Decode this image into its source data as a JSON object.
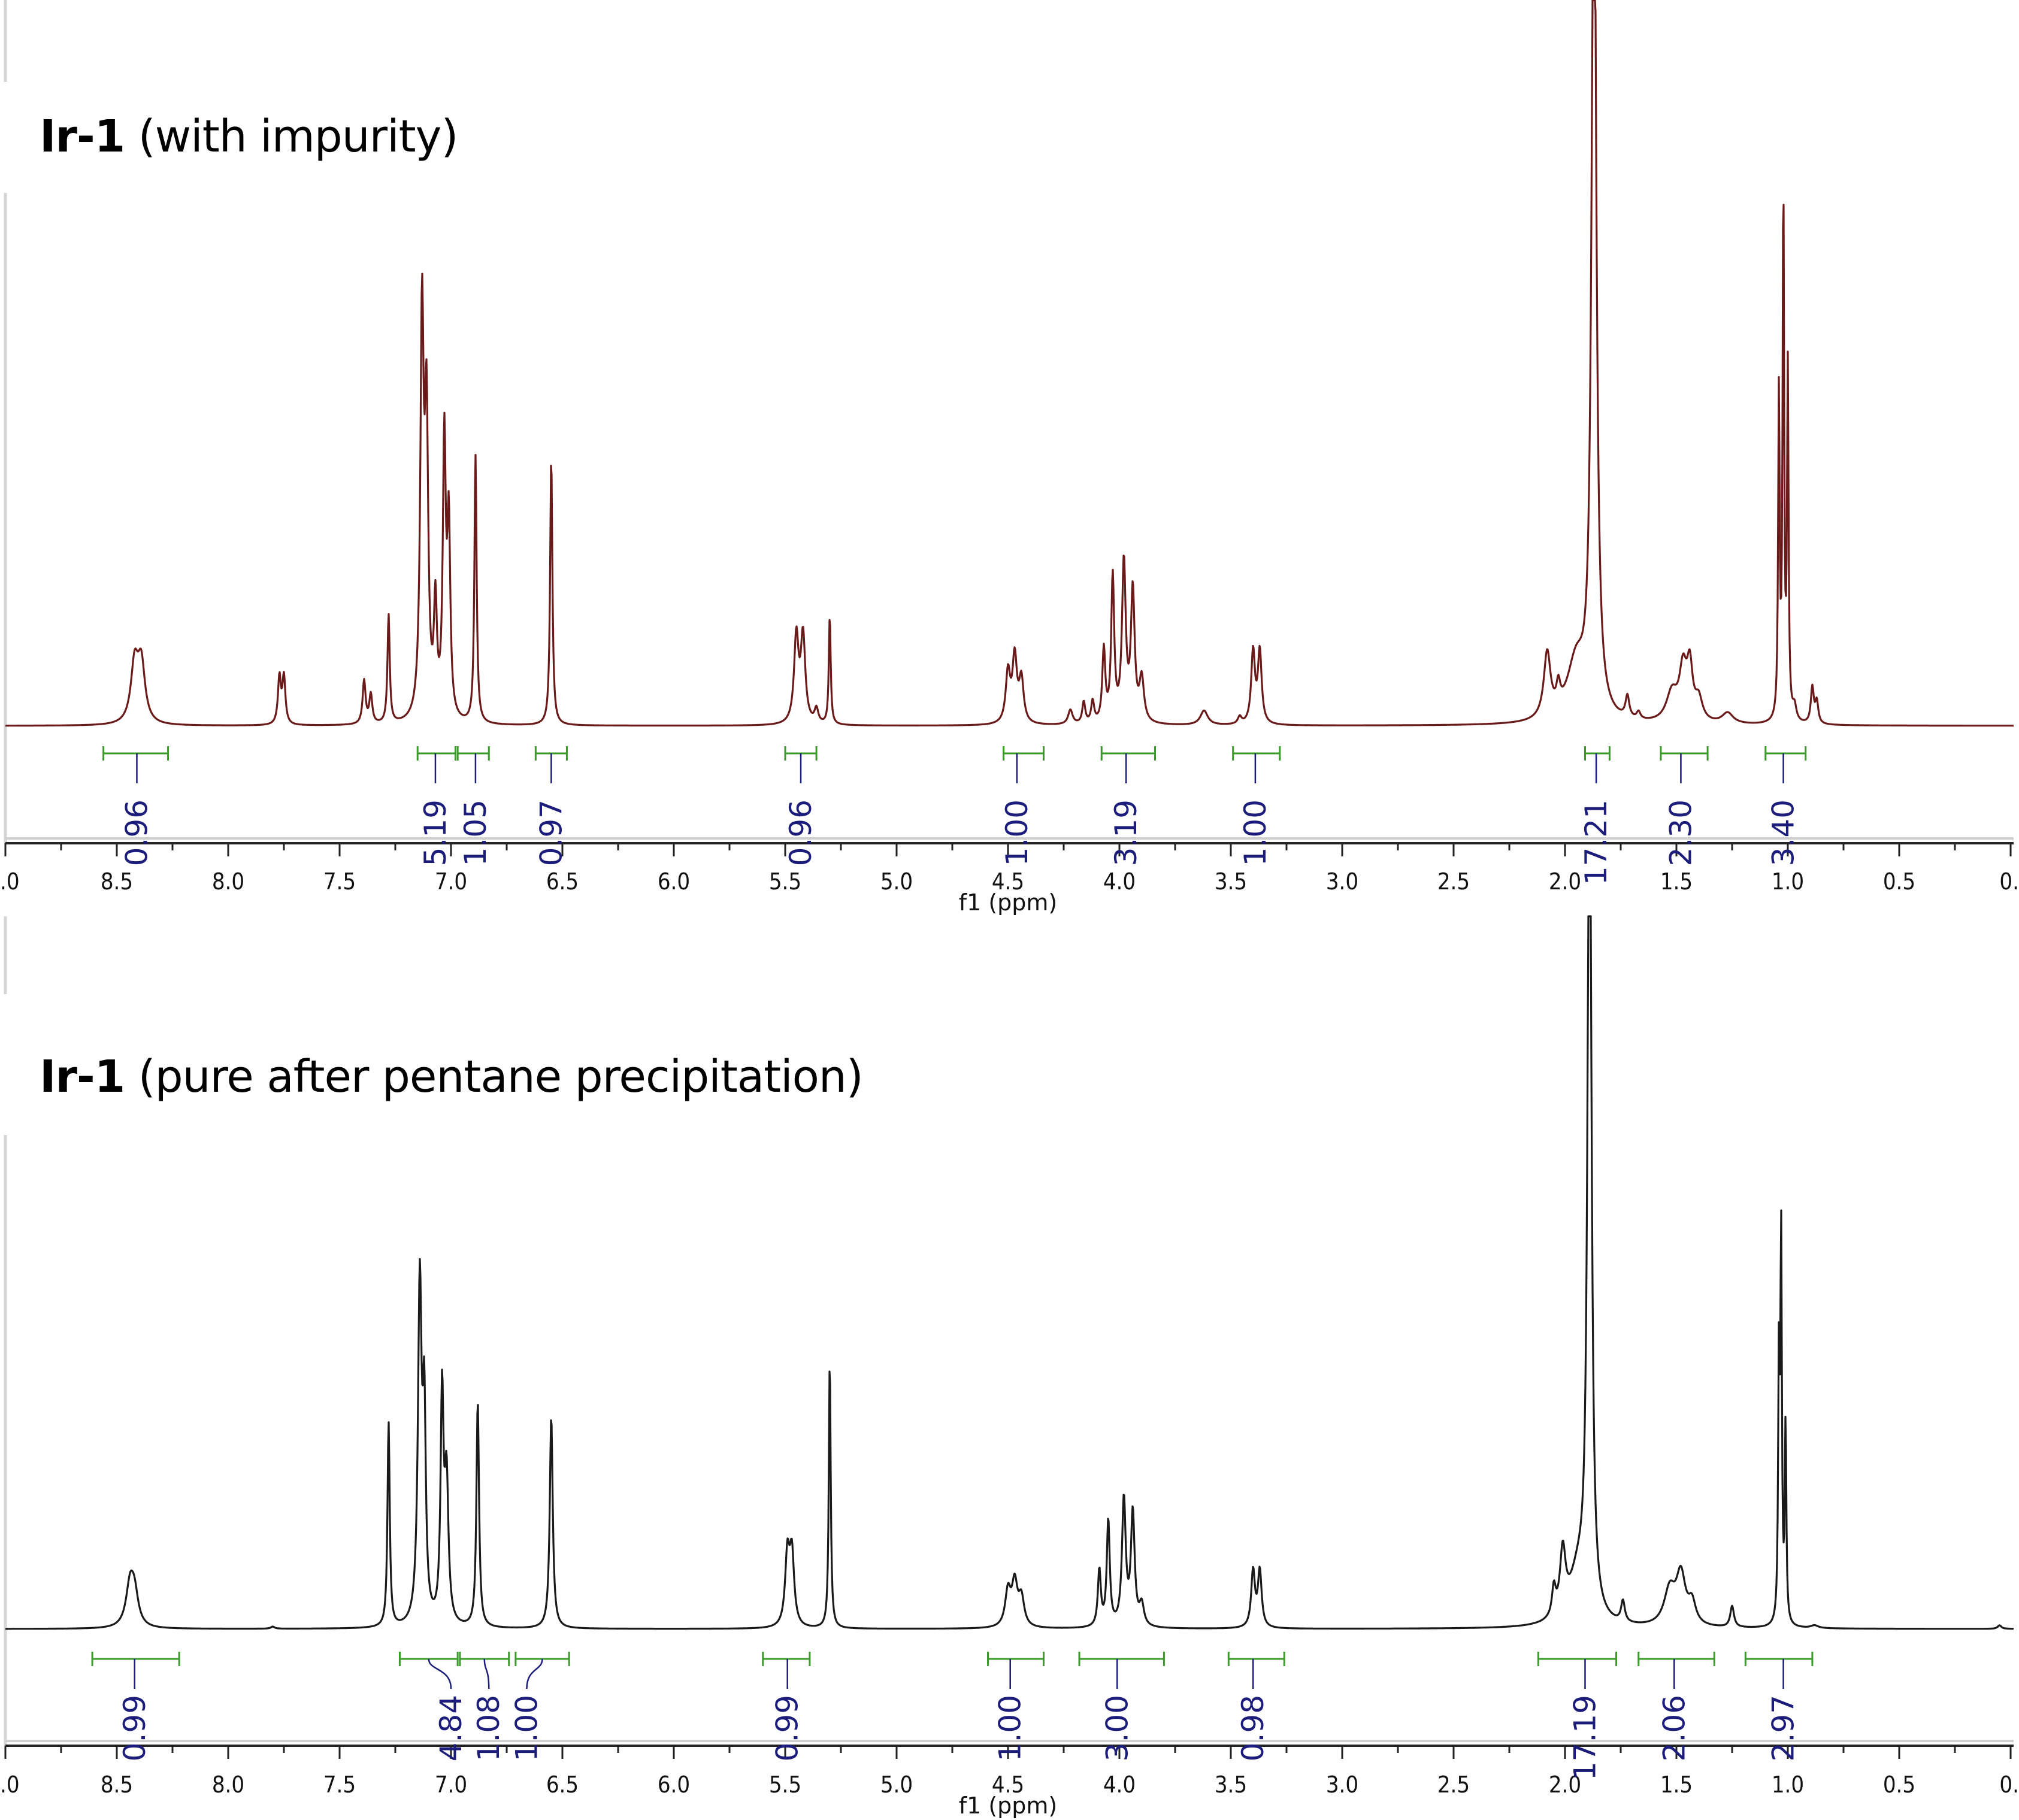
{
  "figure": {
    "panels": [
      {
        "id": "top",
        "title_bold": "Ir-1",
        "title_rest": " (with impurity)",
        "line_color": "#6b1a1a",
        "axis_label": "f1 (ppm)"
      },
      {
        "id": "bottom",
        "title_bold": "Ir-1",
        "title_rest": " (pure after pentane precipitation)",
        "line_color": "#1a1a1a",
        "axis_label": "f1 (ppm)"
      }
    ],
    "integral_bar_color": "#3a9a2a",
    "integral_label_color": "#1c1c7a",
    "axis_tick_labels": [
      ".0",
      "8.5",
      "8.0",
      "7.5",
      "7.0",
      "6.5",
      "6.0",
      "5.5",
      "5.0",
      "4.5",
      "4.0",
      "3.5",
      "3.0",
      "2.5",
      "2.0",
      "1.5",
      "1.0",
      "0.5",
      "0."
    ]
  },
  "chart_data": [
    {
      "type": "line",
      "title": "Ir-1 (with impurity)",
      "xlabel": "f1 (ppm)",
      "ylabel": "",
      "xlim": [
        9.0,
        0.0
      ],
      "x_reversed": true,
      "grid": false,
      "color": "#6b1a1a",
      "peaks": [
        {
          "ppm": 8.42,
          "h": 0.08,
          "w": 0.02
        },
        {
          "ppm": 8.39,
          "h": 0.08,
          "w": 0.02
        },
        {
          "ppm": 7.77,
          "h": 0.065,
          "w": 0.008
        },
        {
          "ppm": 7.75,
          "h": 0.065,
          "w": 0.008
        },
        {
          "ppm": 7.39,
          "h": 0.06,
          "w": 0.008
        },
        {
          "ppm": 7.36,
          "h": 0.04,
          "w": 0.008
        },
        {
          "ppm": 7.28,
          "h": 0.15,
          "w": 0.006
        },
        {
          "ppm": 7.13,
          "h": 0.55,
          "w": 0.009
        },
        {
          "ppm": 7.11,
          "h": 0.4,
          "w": 0.009
        },
        {
          "ppm": 7.07,
          "h": 0.15,
          "w": 0.008
        },
        {
          "ppm": 7.03,
          "h": 0.38,
          "w": 0.008
        },
        {
          "ppm": 7.01,
          "h": 0.26,
          "w": 0.008
        },
        {
          "ppm": 6.89,
          "h": 0.37,
          "w": 0.006
        },
        {
          "ppm": 6.55,
          "h": 0.37,
          "w": 0.006
        },
        {
          "ppm": 5.45,
          "h": 0.12,
          "w": 0.012
        },
        {
          "ppm": 5.42,
          "h": 0.12,
          "w": 0.012
        },
        {
          "ppm": 5.36,
          "h": 0.02,
          "w": 0.01
        },
        {
          "ppm": 5.3,
          "h": 0.15,
          "w": 0.005
        },
        {
          "ppm": 4.5,
          "h": 0.07,
          "w": 0.012
        },
        {
          "ppm": 4.47,
          "h": 0.09,
          "w": 0.012
        },
        {
          "ppm": 4.44,
          "h": 0.06,
          "w": 0.012
        },
        {
          "ppm": 4.22,
          "h": 0.02,
          "w": 0.012
        },
        {
          "ppm": 4.16,
          "h": 0.03,
          "w": 0.008
        },
        {
          "ppm": 4.12,
          "h": 0.03,
          "w": 0.008
        },
        {
          "ppm": 4.07,
          "h": 0.1,
          "w": 0.008
        },
        {
          "ppm": 4.03,
          "h": 0.2,
          "w": 0.008
        },
        {
          "ppm": 3.98,
          "h": 0.22,
          "w": 0.01
        },
        {
          "ppm": 3.94,
          "h": 0.18,
          "w": 0.01
        },
        {
          "ppm": 3.9,
          "h": 0.06,
          "w": 0.012
        },
        {
          "ppm": 3.62,
          "h": 0.02,
          "w": 0.02
        },
        {
          "ppm": 3.46,
          "h": 0.01,
          "w": 0.01
        },
        {
          "ppm": 3.4,
          "h": 0.1,
          "w": 0.01
        },
        {
          "ppm": 3.37,
          "h": 0.1,
          "w": 0.01
        },
        {
          "ppm": 2.08,
          "h": 0.09,
          "w": 0.018
        },
        {
          "ppm": 2.03,
          "h": 0.03,
          "w": 0.01
        },
        {
          "ppm": 1.95,
          "h": 0.08,
          "w": 0.05
        },
        {
          "ppm": 1.87,
          "h": 1.3,
          "w": 0.012
        },
        {
          "ppm": 1.72,
          "h": 0.03,
          "w": 0.01
        },
        {
          "ppm": 1.67,
          "h": 0.01,
          "w": 0.01
        },
        {
          "ppm": 1.52,
          "h": 0.04,
          "w": 0.03
        },
        {
          "ppm": 1.47,
          "h": 0.07,
          "w": 0.02
        },
        {
          "ppm": 1.44,
          "h": 0.07,
          "w": 0.015
        },
        {
          "ppm": 1.4,
          "h": 0.03,
          "w": 0.02
        },
        {
          "ppm": 1.27,
          "h": 0.015,
          "w": 0.03
        },
        {
          "ppm": 1.04,
          "h": 0.45,
          "w": 0.004
        },
        {
          "ppm": 1.02,
          "h": 0.74,
          "w": 0.004
        },
        {
          "ppm": 1.0,
          "h": 0.48,
          "w": 0.004
        },
        {
          "ppm": 0.97,
          "h": 0.02,
          "w": 0.01
        },
        {
          "ppm": 0.89,
          "h": 0.05,
          "w": 0.008
        },
        {
          "ppm": 0.87,
          "h": 0.03,
          "w": 0.008
        }
      ],
      "integrals": [
        {
          "from": 8.56,
          "to": 8.27,
          "center": 8.41,
          "value": "0.96"
        },
        {
          "from": 7.15,
          "to": 6.98,
          "center": 7.07,
          "value": "5.19"
        },
        {
          "from": 6.97,
          "to": 6.83,
          "center": 6.89,
          "value": "1.05"
        },
        {
          "from": 6.62,
          "to": 6.48,
          "center": 6.55,
          "value": "0.97"
        },
        {
          "from": 5.5,
          "to": 5.36,
          "center": 5.43,
          "value": "0.96"
        },
        {
          "from": 4.52,
          "to": 4.34,
          "center": 4.46,
          "value": "1.00"
        },
        {
          "from": 4.08,
          "to": 3.84,
          "center": 3.97,
          "value": "3.19"
        },
        {
          "from": 3.49,
          "to": 3.28,
          "center": 3.39,
          "value": "1.00"
        },
        {
          "from": 1.91,
          "to": 1.8,
          "center": 1.86,
          "value": "17.21"
        },
        {
          "from": 1.57,
          "to": 1.36,
          "center": 1.48,
          "value": "2.30"
        },
        {
          "from": 1.1,
          "to": 0.92,
          "center": 1.02,
          "value": "3.40"
        }
      ]
    },
    {
      "type": "line",
      "title": "Ir-1 (pure after pentane precipitation)",
      "xlabel": "f1 (ppm)",
      "ylabel": "",
      "xlim": [
        9.0,
        0.0
      ],
      "x_reversed": true,
      "grid": false,
      "color": "#1a1a1a",
      "peaks": [
        {
          "ppm": 8.44,
          "h": 0.06,
          "w": 0.022
        },
        {
          "ppm": 8.42,
          "h": 0.04,
          "w": 0.02
        },
        {
          "ppm": 7.8,
          "h": 0.003,
          "w": 0.01
        },
        {
          "ppm": 7.28,
          "h": 0.29,
          "w": 0.006
        },
        {
          "ppm": 7.14,
          "h": 0.48,
          "w": 0.01
        },
        {
          "ppm": 7.12,
          "h": 0.28,
          "w": 0.008
        },
        {
          "ppm": 7.04,
          "h": 0.32,
          "w": 0.008
        },
        {
          "ppm": 7.02,
          "h": 0.2,
          "w": 0.01
        },
        {
          "ppm": 6.88,
          "h": 0.32,
          "w": 0.007
        },
        {
          "ppm": 6.55,
          "h": 0.3,
          "w": 0.008
        },
        {
          "ppm": 5.49,
          "h": 0.1,
          "w": 0.012
        },
        {
          "ppm": 5.47,
          "h": 0.1,
          "w": 0.012
        },
        {
          "ppm": 5.3,
          "h": 0.38,
          "w": 0.005
        },
        {
          "ppm": 4.5,
          "h": 0.05,
          "w": 0.015
        },
        {
          "ppm": 4.47,
          "h": 0.06,
          "w": 0.015
        },
        {
          "ppm": 4.44,
          "h": 0.04,
          "w": 0.015
        },
        {
          "ppm": 4.09,
          "h": 0.08,
          "w": 0.008
        },
        {
          "ppm": 4.05,
          "h": 0.15,
          "w": 0.008
        },
        {
          "ppm": 3.98,
          "h": 0.18,
          "w": 0.01
        },
        {
          "ppm": 3.94,
          "h": 0.16,
          "w": 0.01
        },
        {
          "ppm": 3.9,
          "h": 0.03,
          "w": 0.012
        },
        {
          "ppm": 3.4,
          "h": 0.08,
          "w": 0.01
        },
        {
          "ppm": 3.37,
          "h": 0.08,
          "w": 0.01
        },
        {
          "ppm": 2.05,
          "h": 0.04,
          "w": 0.01
        },
        {
          "ppm": 2.01,
          "h": 0.09,
          "w": 0.015
        },
        {
          "ppm": 1.94,
          "h": 0.07,
          "w": 0.05
        },
        {
          "ppm": 1.89,
          "h": 1.3,
          "w": 0.01
        },
        {
          "ppm": 1.74,
          "h": 0.03,
          "w": 0.01
        },
        {
          "ppm": 1.53,
          "h": 0.05,
          "w": 0.03
        },
        {
          "ppm": 1.48,
          "h": 0.07,
          "w": 0.025
        },
        {
          "ppm": 1.43,
          "h": 0.03,
          "w": 0.02
        },
        {
          "ppm": 1.25,
          "h": 0.03,
          "w": 0.01
        },
        {
          "ppm": 1.04,
          "h": 0.36,
          "w": 0.004
        },
        {
          "ppm": 1.03,
          "h": 0.54,
          "w": 0.004
        },
        {
          "ppm": 1.01,
          "h": 0.28,
          "w": 0.004
        },
        {
          "ppm": 0.88,
          "h": 0.004,
          "w": 0.02
        },
        {
          "ppm": 0.05,
          "h": 0.005,
          "w": 0.01
        }
      ],
      "integrals": [
        {
          "from": 8.61,
          "to": 8.22,
          "center": 8.42,
          "value": "0.99"
        },
        {
          "from": 7.23,
          "to": 6.97,
          "center": 7.0,
          "value": "4.84",
          "curve": true
        },
        {
          "from": 6.96,
          "to": 6.74,
          "center": 6.83,
          "value": "1.08",
          "curve": true
        },
        {
          "from": 6.71,
          "to": 6.47,
          "center": 6.66,
          "value": "1.00",
          "curve": true
        },
        {
          "from": 5.6,
          "to": 5.39,
          "center": 5.49,
          "value": "0.99"
        },
        {
          "from": 4.59,
          "to": 4.34,
          "center": 4.49,
          "value": "1.00"
        },
        {
          "from": 4.18,
          "to": 3.8,
          "center": 4.01,
          "value": "3.00"
        },
        {
          "from": 3.51,
          "to": 3.26,
          "center": 3.4,
          "value": "0.98"
        },
        {
          "from": 2.12,
          "to": 1.77,
          "center": 1.91,
          "value": "17.19"
        },
        {
          "from": 1.67,
          "to": 1.33,
          "center": 1.51,
          "value": "2.06"
        },
        {
          "from": 1.19,
          "to": 0.89,
          "center": 1.02,
          "value": "2.97"
        }
      ]
    }
  ]
}
